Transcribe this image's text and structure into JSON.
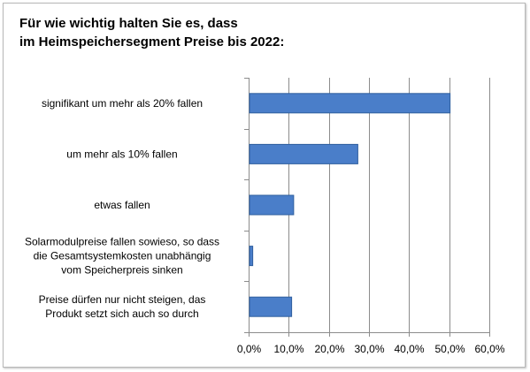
{
  "chart_data": {
    "type": "bar",
    "orientation": "horizontal",
    "title_lines": [
      "Für wie wichtig halten Sie es, dass",
      "im Heimspeichersegment Preise bis 2022:"
    ],
    "categories": [
      [
        "signifikant um mehr als 20% fallen"
      ],
      [
        "um mehr als 10% fallen"
      ],
      [
        "etwas fallen"
      ],
      [
        "Solarmodulpreise fallen sowieso, so dass",
        "die Gesamtsystemkosten unabhängig",
        "vom Speicherpreis sinken"
      ],
      [
        "Preise dürfen nur nicht steigen, das",
        "Produkt setzt sich auch so durch"
      ]
    ],
    "values": [
      50.0,
      27.0,
      11.0,
      0.8,
      10.5
    ],
    "xlim": [
      0,
      60
    ],
    "x_ticks": [
      "0,0%",
      "10,0%",
      "20,0%",
      "30,0%",
      "40,0%",
      "50,0%",
      "60,0%"
    ],
    "grid": true,
    "legend": "none",
    "colors": {
      "bar_fill": "#4a7ec9",
      "bar_edge": "#2f5f9e",
      "grid": "#8c8c8c",
      "axis": "#8c8c8c"
    }
  }
}
